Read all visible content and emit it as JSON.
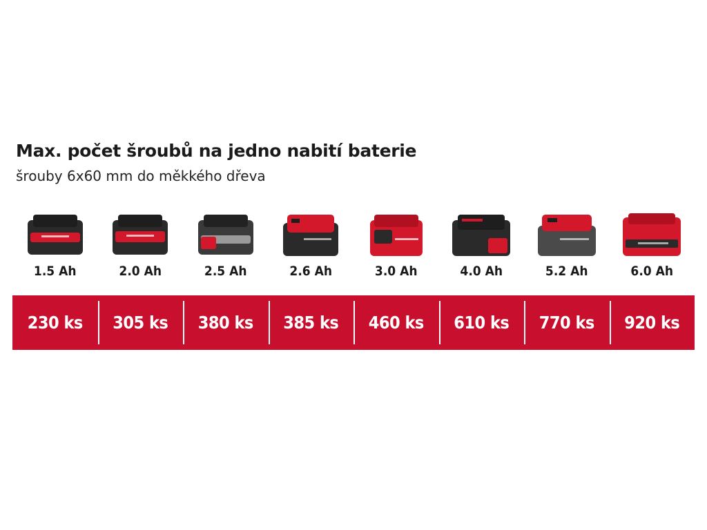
{
  "heading": {
    "title": "Max. počet šroubů na jedno nabití baterie",
    "subtitle": "šrouby 6x60 mm do měkkého dřeva"
  },
  "colors": {
    "brand_red": "#c8102e",
    "battery_dark": "#2a2a2a",
    "battery_red": "#d4182b"
  },
  "batteries": [
    {
      "capacity": "1.5 Ah",
      "screws": "230 ks",
      "icon": "battery-pack-icon"
    },
    {
      "capacity": "2.0 Ah",
      "screws": "305 ks",
      "icon": "battery-pack-icon"
    },
    {
      "capacity": "2.5 Ah",
      "screws": "380 ks",
      "icon": "battery-pack-icon"
    },
    {
      "capacity": "2.6 Ah",
      "screws": "385 ks",
      "icon": "battery-pack-icon"
    },
    {
      "capacity": "3.0 Ah",
      "screws": "460 ks",
      "icon": "battery-pack-icon"
    },
    {
      "capacity": "4.0 Ah",
      "screws": "610 ks",
      "icon": "battery-pack-icon"
    },
    {
      "capacity": "5.2 Ah",
      "screws": "770 ks",
      "icon": "battery-pack-icon"
    },
    {
      "capacity": "6.0 Ah",
      "screws": "920 ks",
      "icon": "battery-pack-icon"
    }
  ]
}
